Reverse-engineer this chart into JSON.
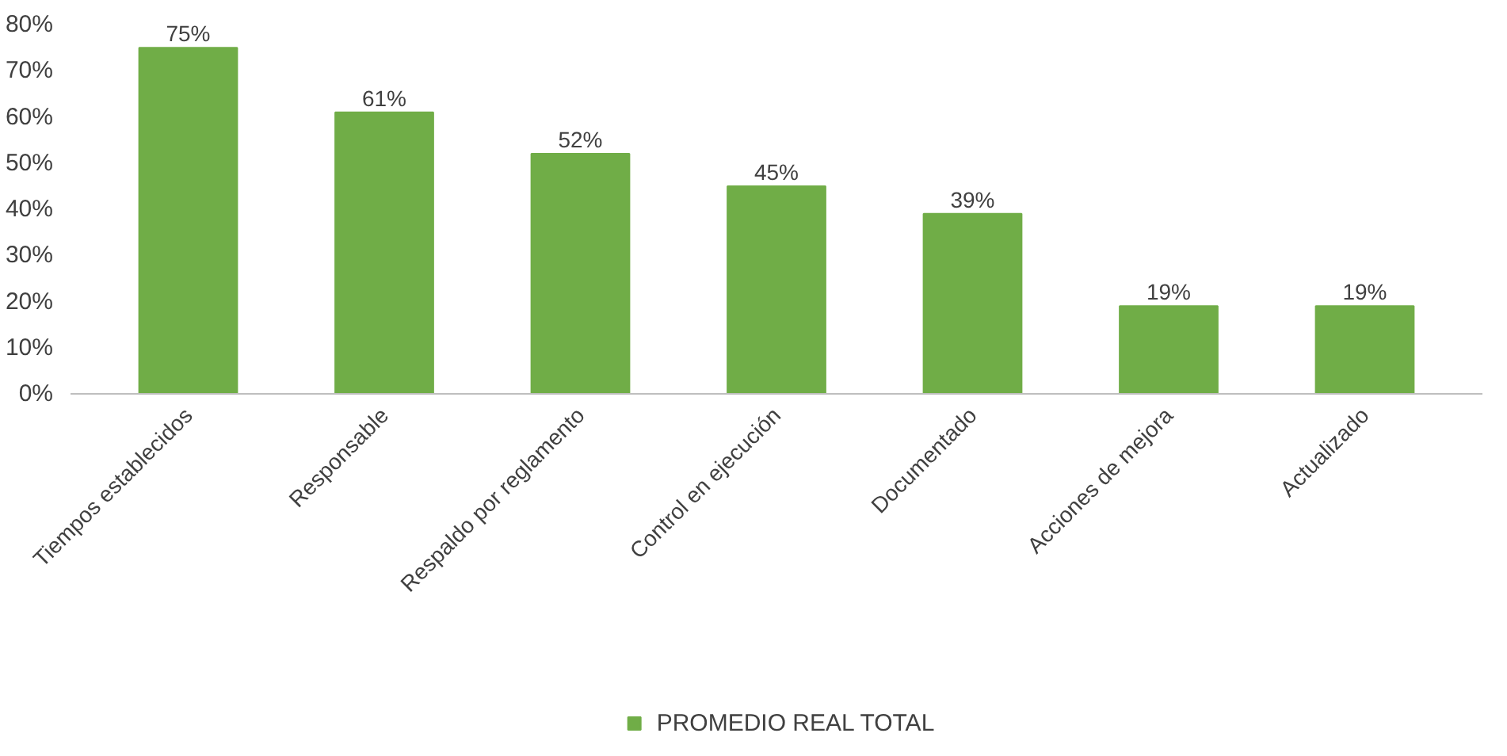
{
  "chart_data": {
    "type": "bar",
    "categories": [
      "Tiempos establecidos",
      "Responsable",
      "Respaldo por reglamento",
      "Control en ejecución",
      "Documentado",
      "Acciones de mejora",
      "Actualizado"
    ],
    "series": [
      {
        "name": "PROMEDIO REAL TOTAL",
        "color": "#70ad47",
        "values": [
          75,
          61,
          52,
          45,
          39,
          19,
          19
        ]
      }
    ],
    "value_labels": [
      "75%",
      "61%",
      "52%",
      "45%",
      "39%",
      "19%",
      "19%"
    ],
    "ylim": [
      0,
      80
    ],
    "yticks": [
      {
        "value": 0,
        "label": "0%"
      },
      {
        "value": 10,
        "label": "10%"
      },
      {
        "value": 20,
        "label": "20%"
      },
      {
        "value": 30,
        "label": "30%"
      },
      {
        "value": 40,
        "label": "40%"
      },
      {
        "value": 50,
        "label": "50%"
      },
      {
        "value": 60,
        "label": "60%"
      },
      {
        "value": 70,
        "label": "70%"
      },
      {
        "value": 80,
        "label": "80%"
      }
    ],
    "grid": false,
    "legend": "bottom"
  }
}
